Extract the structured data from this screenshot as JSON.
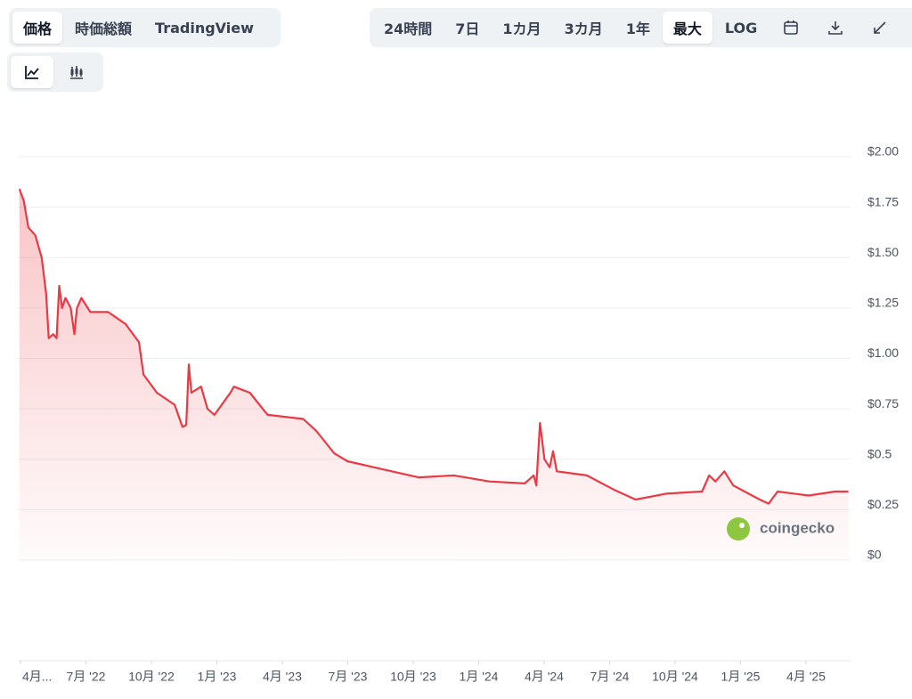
{
  "view_tabs": [
    "価格",
    "時価総額",
    "TradingView"
  ],
  "selected_view": 0,
  "range_tabs": [
    "24時間",
    "7日",
    "1カ月",
    "3カ月",
    "1年",
    "最大",
    "LOG"
  ],
  "selected_range": 5,
  "watermark": "coingecko",
  "chart_data": {
    "type": "line",
    "x": [
      2022.246,
      2022.263,
      2022.28,
      2022.307,
      2022.331,
      2022.348,
      2022.358,
      2022.375,
      2022.388,
      2022.398,
      2022.409,
      2022.422,
      2022.442,
      2022.456,
      2022.466,
      2022.483,
      2022.517,
      2022.585,
      2022.652,
      2022.703,
      2022.72,
      2022.771,
      2022.839,
      2022.869,
      2022.883,
      2022.893,
      2022.903,
      2022.94,
      2022.964,
      2022.991,
      2023.052,
      2023.065,
      2023.126,
      2023.194,
      2023.33,
      2023.38,
      2023.448,
      2023.499,
      2023.634,
      2023.77,
      2023.905,
      2024.041,
      2024.176,
      2024.21,
      2024.22,
      2024.234,
      2024.251,
      2024.271,
      2024.284,
      2024.298,
      2024.413,
      2024.515,
      2024.599,
      2024.718,
      2024.853,
      2024.88,
      2024.904,
      2024.938,
      2024.972,
      2025.073,
      2025.107,
      2025.141,
      2025.26,
      2025.361,
      2025.412
    ],
    "series": [
      {
        "color": "#ea3943",
        "values": [
          1.84,
          1.78,
          1.65,
          1.61,
          1.5,
          1.32,
          1.1,
          1.12,
          1.1,
          1.36,
          1.25,
          1.3,
          1.25,
          1.12,
          1.25,
          1.3,
          1.23,
          1.23,
          1.17,
          1.08,
          0.92,
          0.83,
          0.77,
          0.66,
          0.67,
          0.97,
          0.83,
          0.86,
          0.75,
          0.72,
          0.83,
          0.86,
          0.83,
          0.72,
          0.7,
          0.64,
          0.53,
          0.49,
          0.45,
          0.41,
          0.42,
          0.39,
          0.38,
          0.42,
          0.37,
          0.68,
          0.5,
          0.46,
          0.54,
          0.44,
          0.42,
          0.35,
          0.3,
          0.33,
          0.34,
          0.42,
          0.39,
          0.44,
          0.37,
          0.3,
          0.28,
          0.34,
          0.32,
          0.34,
          0.34
        ]
      }
    ],
    "xlim": [
      2022.24,
      2025.42
    ],
    "xticks": [
      {
        "value": 2022.25,
        "label": "4月..."
      },
      {
        "value": 2022.5,
        "label": "7月 '22"
      },
      {
        "value": 2022.75,
        "label": "10月 '22"
      },
      {
        "value": 2023,
        "label": "1月 '23"
      },
      {
        "value": 2023.25,
        "label": "4月 '23"
      },
      {
        "value": 2023.5,
        "label": "7月 '23"
      },
      {
        "value": 2023.75,
        "label": "10月 '23"
      },
      {
        "value": 2024,
        "label": "1月 '24"
      },
      {
        "value": 2024.25,
        "label": "4月 '24"
      },
      {
        "value": 2024.5,
        "label": "7月 '24"
      },
      {
        "value": 2024.75,
        "label": "10月 '24"
      },
      {
        "value": 2025,
        "label": "1月 '25"
      },
      {
        "value": 2025.25,
        "label": "4月 '25"
      }
    ],
    "ylim": [
      0,
      2
    ],
    "yticks": [
      {
        "value": 2,
        "label": "$2.00"
      },
      {
        "value": 1.75,
        "label": "$1.75"
      },
      {
        "value": 1.5,
        "label": "$1.50"
      },
      {
        "value": 1.25,
        "label": "$1.25"
      },
      {
        "value": 1,
        "label": "$1.00"
      },
      {
        "value": 0.75,
        "label": "$0.75"
      },
      {
        "value": 0.5,
        "label": "$0.5"
      },
      {
        "value": 0.25,
        "label": "$0.25"
      },
      {
        "value": 0,
        "label": "$0"
      }
    ],
    "grid": true
  }
}
